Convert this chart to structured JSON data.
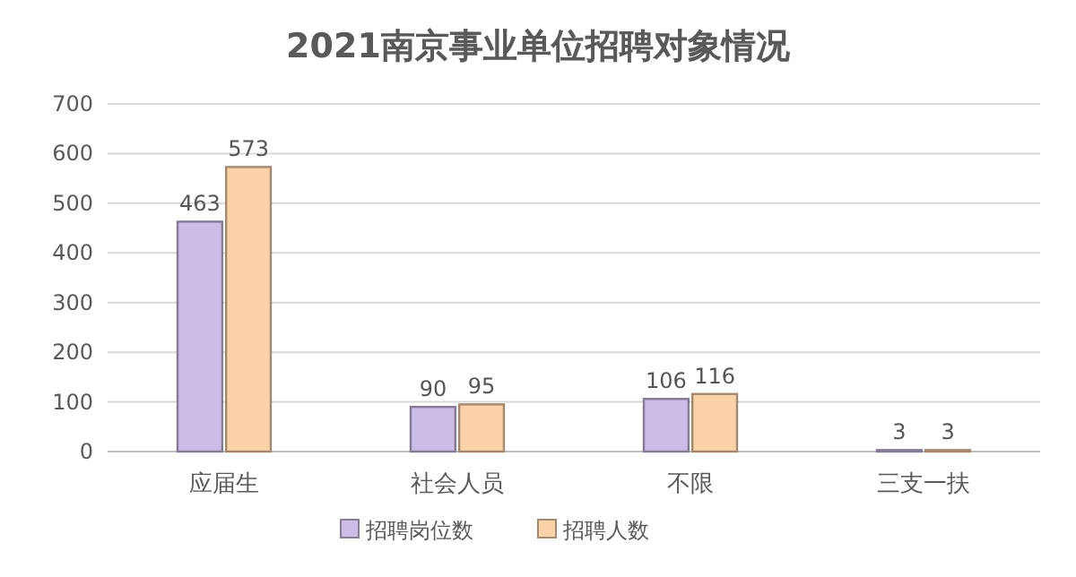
{
  "chart_data": {
    "type": "bar",
    "title": "2021南京事业单位招聘对象情况",
    "categories": [
      "应届生",
      "社会人员",
      "不限",
      "三支一扶"
    ],
    "series": [
      {
        "name": "招聘岗位数",
        "color": "#cbbde6",
        "values": [
          463,
          90,
          106,
          3
        ]
      },
      {
        "name": "招聘人数",
        "color": "#fcd2ab",
        "values": [
          573,
          95,
          116,
          3
        ]
      }
    ],
    "ylim": [
      0,
      700
    ],
    "yticks": [
      0,
      100,
      200,
      300,
      400,
      500,
      600,
      700
    ],
    "grid": "y",
    "legend": "bottom",
    "data_labels": true
  }
}
